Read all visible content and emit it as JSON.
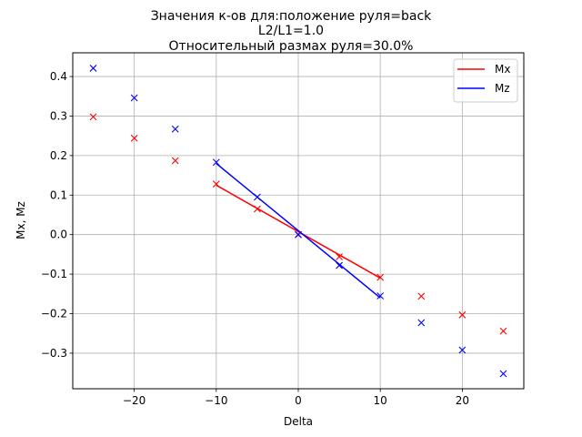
{
  "chart_data": {
    "type": "line",
    "title_lines": [
      "Значения к-ов для:положение руля=back",
      "L2/L1=1.0",
      "Относительный размах руля=30.0%"
    ],
    "xlabel": "Delta",
    "ylabel": "Mx, Mz",
    "xlim": [
      -27.5,
      27.5
    ],
    "ylim": [
      -0.39,
      0.46
    ],
    "xticks": [
      -20,
      -10,
      0,
      10,
      20
    ],
    "yticks": [
      -0.3,
      -0.2,
      -0.1,
      0.0,
      0.1,
      0.2,
      0.3,
      0.4
    ],
    "grid": true,
    "legend_position": "top-right",
    "series": [
      {
        "name": "Mx",
        "color": "#ff0000",
        "line": {
          "x": [
            -10,
            10
          ],
          "y": [
            0.125,
            -0.11
          ]
        },
        "points": {
          "x": [
            -25,
            -20,
            -15,
            -10,
            -5,
            0,
            5,
            10,
            15,
            20,
            25
          ],
          "y": [
            0.298,
            0.244,
            0.187,
            0.128,
            0.065,
            0.0,
            -0.056,
            -0.108,
            -0.156,
            -0.203,
            -0.244
          ]
        }
      },
      {
        "name": "Mz",
        "color": "#0000ff",
        "line": {
          "x": [
            -10,
            10
          ],
          "y": [
            0.18,
            -0.16
          ]
        },
        "points": {
          "x": [
            -25,
            -20,
            -15,
            -10,
            -5,
            0,
            5,
            10,
            15,
            20,
            25
          ],
          "y": [
            0.421,
            0.346,
            0.267,
            0.183,
            0.095,
            0.0,
            -0.078,
            -0.155,
            -0.223,
            -0.292,
            -0.352
          ]
        }
      }
    ]
  }
}
